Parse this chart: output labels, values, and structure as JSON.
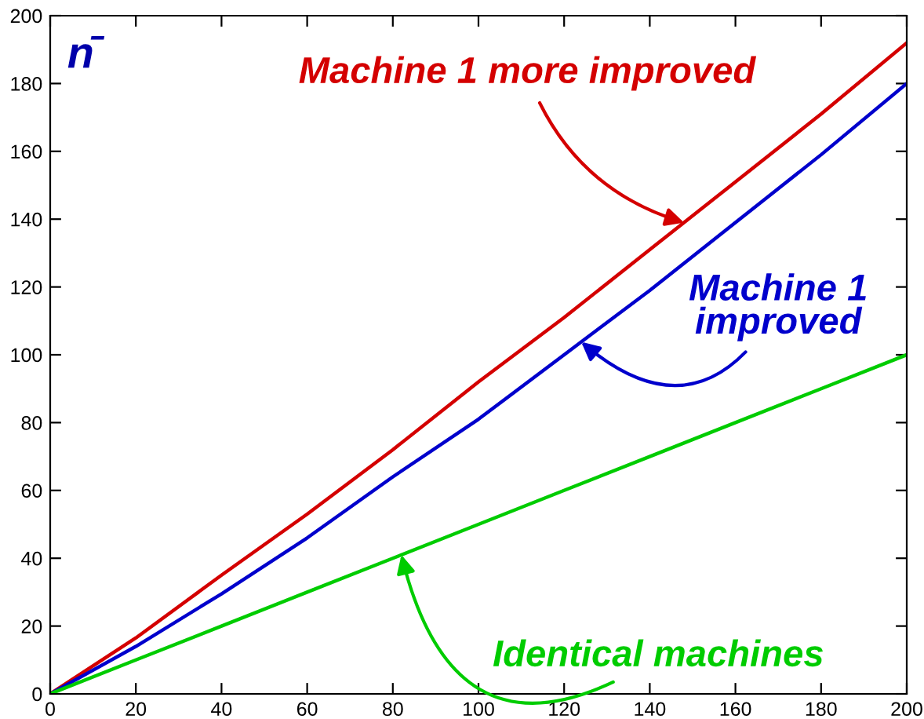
{
  "chart_data": {
    "type": "line",
    "ylabel": "n̄",
    "x": [
      0,
      20,
      40,
      60,
      80,
      100,
      120,
      140,
      160,
      180,
      200
    ],
    "series": [
      {
        "name": "Machine 1 more improved",
        "color": "#d40000",
        "values": [
          0,
          16.5,
          35,
          53,
          72,
          92,
          111,
          131,
          151,
          171,
          192
        ]
      },
      {
        "name": "Machine 1\nimproved",
        "color": "#0000cc",
        "values": [
          0,
          14,
          29.5,
          46,
          64,
          81,
          100,
          119,
          139,
          159,
          180
        ]
      },
      {
        "name": "Identical machines",
        "color": "#00cc00",
        "values": [
          0,
          10,
          20,
          30,
          40,
          50,
          60,
          70,
          80,
          90,
          100
        ]
      }
    ],
    "xlim": [
      0,
      200
    ],
    "ylim": [
      0,
      200
    ],
    "xticks": [
      0,
      20,
      40,
      60,
      80,
      100,
      120,
      140,
      160,
      180,
      200
    ],
    "yticks": [
      0,
      20,
      40,
      60,
      80,
      100,
      120,
      140,
      160,
      180,
      200
    ],
    "grid": false,
    "legend": false,
    "marker": "none",
    "line_style": "solid"
  }
}
